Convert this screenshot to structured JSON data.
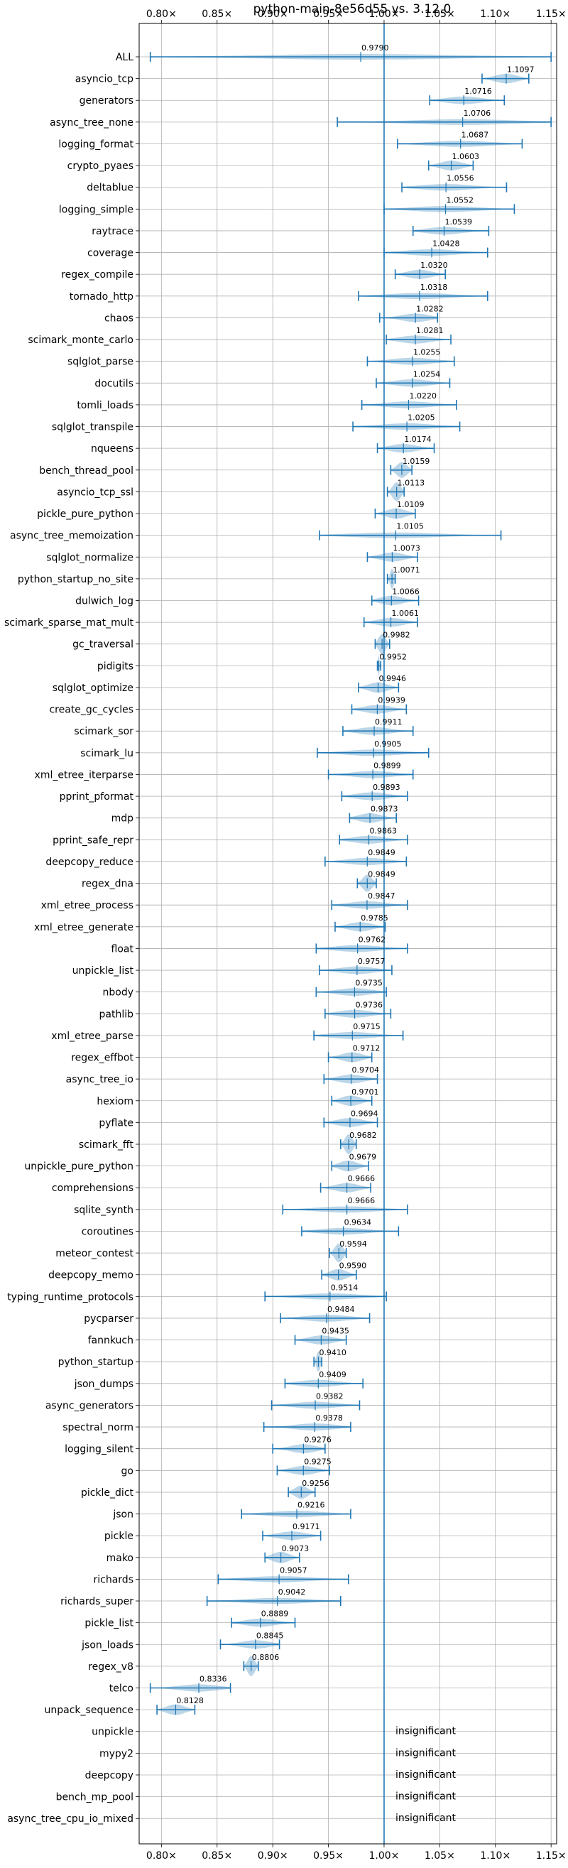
{
  "chart_data": {
    "type": "violin",
    "title": "python-main-8e56d55 vs. 3.12.0",
    "xlim": [
      0.78,
      1.155
    ],
    "x_ticks": [
      0.8,
      0.85,
      0.9,
      0.95,
      1.0,
      1.05,
      1.1,
      1.15
    ],
    "x_tick_labels": [
      "0.80×",
      "0.85×",
      "0.90×",
      "0.95×",
      "1.00×",
      "1.05×",
      "1.10×",
      "1.15×"
    ],
    "reference_line": 1.0,
    "ticks_top_and_bottom": true,
    "grid": true,
    "color": "#1f77b4",
    "insignificant_label": "insignificant",
    "benchmarks": [
      {
        "name": "ALL",
        "value": 0.979,
        "label": "0.9790",
        "min": 0.79,
        "max": 1.15
      },
      {
        "name": "asyncio_tcp",
        "value": 1.1097,
        "label": "1.1097",
        "min": 1.088,
        "max": 1.13
      },
      {
        "name": "generators",
        "value": 1.0716,
        "label": "1.0716",
        "min": 1.041,
        "max": 1.108
      },
      {
        "name": "async_tree_none",
        "value": 1.0706,
        "label": "1.0706",
        "min": 0.958,
        "max": 1.15
      },
      {
        "name": "logging_format",
        "value": 1.0687,
        "label": "1.0687",
        "min": 1.012,
        "max": 1.124
      },
      {
        "name": "crypto_pyaes",
        "value": 1.0603,
        "label": "1.0603",
        "min": 1.04,
        "max": 1.08
      },
      {
        "name": "deltablue",
        "value": 1.0556,
        "label": "1.0556",
        "min": 1.016,
        "max": 1.11
      },
      {
        "name": "logging_simple",
        "value": 1.0552,
        "label": "1.0552",
        "min": 1.0,
        "max": 1.117
      },
      {
        "name": "raytrace",
        "value": 1.0539,
        "label": "1.0539",
        "min": 1.026,
        "max": 1.094
      },
      {
        "name": "coverage",
        "value": 1.0428,
        "label": "1.0428",
        "min": 1.0,
        "max": 1.093
      },
      {
        "name": "regex_compile",
        "value": 1.032,
        "label": "1.0320",
        "min": 1.01,
        "max": 1.055
      },
      {
        "name": "tornado_http",
        "value": 1.0318,
        "label": "1.0318",
        "min": 0.977,
        "max": 1.093
      },
      {
        "name": "chaos",
        "value": 1.0282,
        "label": "1.0282",
        "min": 0.996,
        "max": 1.048
      },
      {
        "name": "scimark_monte_carlo",
        "value": 1.0281,
        "label": "1.0281",
        "min": 1.002,
        "max": 1.06
      },
      {
        "name": "sqlglot_parse",
        "value": 1.0255,
        "label": "1.0255",
        "min": 0.985,
        "max": 1.063
      },
      {
        "name": "docutils",
        "value": 1.0254,
        "label": "1.0254",
        "min": 0.993,
        "max": 1.059
      },
      {
        "name": "tomli_loads",
        "value": 1.022,
        "label": "1.0220",
        "min": 0.98,
        "max": 1.065
      },
      {
        "name": "sqlglot_transpile",
        "value": 1.0205,
        "label": "1.0205",
        "min": 0.972,
        "max": 1.068
      },
      {
        "name": "nqueens",
        "value": 1.0174,
        "label": "1.0174",
        "min": 0.994,
        "max": 1.045
      },
      {
        "name": "bench_thread_pool",
        "value": 1.0159,
        "label": "1.0159",
        "min": 1.006,
        "max": 1.025
      },
      {
        "name": "asyncio_tcp_ssl",
        "value": 1.0113,
        "label": "1.0113",
        "min": 1.003,
        "max": 1.018
      },
      {
        "name": "pickle_pure_python",
        "value": 1.0109,
        "label": "1.0109",
        "min": 0.992,
        "max": 1.028
      },
      {
        "name": "async_tree_memoization",
        "value": 1.0105,
        "label": "1.0105",
        "min": 0.942,
        "max": 1.105
      },
      {
        "name": "sqlglot_normalize",
        "value": 1.0073,
        "label": "1.0073",
        "min": 0.985,
        "max": 1.03
      },
      {
        "name": "python_startup_no_site",
        "value": 1.0071,
        "label": "1.0071",
        "min": 1.003,
        "max": 1.01
      },
      {
        "name": "dulwich_log",
        "value": 1.0066,
        "label": "1.0066",
        "min": 0.989,
        "max": 1.031
      },
      {
        "name": "scimark_sparse_mat_mult",
        "value": 1.0061,
        "label": "1.0061",
        "min": 0.982,
        "max": 1.03
      },
      {
        "name": "gc_traversal",
        "value": 0.9982,
        "label": "0.9982",
        "min": 0.992,
        "max": 1.005
      },
      {
        "name": "pidigits",
        "value": 0.9952,
        "label": "0.9952",
        "min": 0.994,
        "max": 0.997
      },
      {
        "name": "sqlglot_optimize",
        "value": 0.9946,
        "label": "0.9946",
        "min": 0.977,
        "max": 1.013
      },
      {
        "name": "create_gc_cycles",
        "value": 0.9939,
        "label": "0.9939",
        "min": 0.971,
        "max": 1.02
      },
      {
        "name": "scimark_sor",
        "value": 0.9911,
        "label": "0.9911",
        "min": 0.963,
        "max": 1.026
      },
      {
        "name": "scimark_lu",
        "value": 0.9905,
        "label": "0.9905",
        "min": 0.94,
        "max": 1.04
      },
      {
        "name": "xml_etree_iterparse",
        "value": 0.9899,
        "label": "0.9899",
        "min": 0.95,
        "max": 1.026
      },
      {
        "name": "pprint_pformat",
        "value": 0.9893,
        "label": "0.9893",
        "min": 0.962,
        "max": 1.021
      },
      {
        "name": "mdp",
        "value": 0.9873,
        "label": "0.9873",
        "min": 0.969,
        "max": 1.011
      },
      {
        "name": "pprint_safe_repr",
        "value": 0.9863,
        "label": "0.9863",
        "min": 0.96,
        "max": 1.021
      },
      {
        "name": "deepcopy_reduce",
        "value": 0.9849,
        "label": "0.9849",
        "min": 0.947,
        "max": 1.02
      },
      {
        "name": "regex_dna",
        "value": 0.9849,
        "label": "0.9849",
        "min": 0.976,
        "max": 0.993
      },
      {
        "name": "xml_etree_process",
        "value": 0.9847,
        "label": "0.9847",
        "min": 0.953,
        "max": 1.021
      },
      {
        "name": "xml_etree_generate",
        "value": 0.9785,
        "label": "0.9785",
        "min": 0.956,
        "max": 1.001
      },
      {
        "name": "float",
        "value": 0.9762,
        "label": "0.9762",
        "min": 0.939,
        "max": 1.021
      },
      {
        "name": "unpickle_list",
        "value": 0.9757,
        "label": "0.9757",
        "min": 0.942,
        "max": 1.007
      },
      {
        "name": "nbody",
        "value": 0.9735,
        "label": "0.9735",
        "min": 0.939,
        "max": 1.002
      },
      {
        "name": "pathlib",
        "value": 0.9736,
        "label": "0.9736",
        "min": 0.947,
        "max": 1.006
      },
      {
        "name": "xml_etree_parse",
        "value": 0.9715,
        "label": "0.9715",
        "min": 0.937,
        "max": 1.017
      },
      {
        "name": "regex_effbot",
        "value": 0.9712,
        "label": "0.9712",
        "min": 0.95,
        "max": 0.989
      },
      {
        "name": "async_tree_io",
        "value": 0.9704,
        "label": "0.9704",
        "min": 0.946,
        "max": 0.994
      },
      {
        "name": "hexiom",
        "value": 0.9701,
        "label": "0.9701",
        "min": 0.953,
        "max": 0.989
      },
      {
        "name": "pyflate",
        "value": 0.9694,
        "label": "0.9694",
        "min": 0.946,
        "max": 0.994
      },
      {
        "name": "scimark_fft",
        "value": 0.9682,
        "label": "0.9682",
        "min": 0.961,
        "max": 0.975
      },
      {
        "name": "unpickle_pure_python",
        "value": 0.9679,
        "label": "0.9679",
        "min": 0.953,
        "max": 0.986
      },
      {
        "name": "comprehensions",
        "value": 0.9666,
        "label": "0.9666",
        "min": 0.943,
        "max": 0.988
      },
      {
        "name": "sqlite_synth",
        "value": 0.9666,
        "label": "0.9666",
        "min": 0.909,
        "max": 1.021
      },
      {
        "name": "coroutines",
        "value": 0.9634,
        "label": "0.9634",
        "min": 0.926,
        "max": 1.013
      },
      {
        "name": "meteor_contest",
        "value": 0.9594,
        "label": "0.9594",
        "min": 0.951,
        "max": 0.966
      },
      {
        "name": "deepcopy_memo",
        "value": 0.959,
        "label": "0.9590",
        "min": 0.944,
        "max": 0.975
      },
      {
        "name": "typing_runtime_protocols",
        "value": 0.9514,
        "label": "0.9514",
        "min": 0.893,
        "max": 1.002
      },
      {
        "name": "pycparser",
        "value": 0.9484,
        "label": "0.9484",
        "min": 0.907,
        "max": 0.987
      },
      {
        "name": "fannkuch",
        "value": 0.9435,
        "label": "0.9435",
        "min": 0.92,
        "max": 0.966
      },
      {
        "name": "python_startup",
        "value": 0.941,
        "label": "0.9410",
        "min": 0.937,
        "max": 0.944
      },
      {
        "name": "json_dumps",
        "value": 0.9409,
        "label": "0.9409",
        "min": 0.911,
        "max": 0.981
      },
      {
        "name": "async_generators",
        "value": 0.9382,
        "label": "0.9382",
        "min": 0.899,
        "max": 0.978
      },
      {
        "name": "spectral_norm",
        "value": 0.9378,
        "label": "0.9378",
        "min": 0.892,
        "max": 0.97
      },
      {
        "name": "logging_silent",
        "value": 0.9276,
        "label": "0.9276",
        "min": 0.9,
        "max": 0.947
      },
      {
        "name": "go",
        "value": 0.9275,
        "label": "0.9275",
        "min": 0.904,
        "max": 0.951
      },
      {
        "name": "pickle_dict",
        "value": 0.9256,
        "label": "0.9256",
        "min": 0.914,
        "max": 0.938
      },
      {
        "name": "json",
        "value": 0.9216,
        "label": "0.9216",
        "min": 0.872,
        "max": 0.97
      },
      {
        "name": "pickle",
        "value": 0.9171,
        "label": "0.9171",
        "min": 0.891,
        "max": 0.943
      },
      {
        "name": "mako",
        "value": 0.9073,
        "label": "0.9073",
        "min": 0.893,
        "max": 0.924
      },
      {
        "name": "richards",
        "value": 0.9057,
        "label": "0.9057",
        "min": 0.851,
        "max": 0.968
      },
      {
        "name": "richards_super",
        "value": 0.9042,
        "label": "0.9042",
        "min": 0.841,
        "max": 0.961
      },
      {
        "name": "pickle_list",
        "value": 0.8889,
        "label": "0.8889",
        "min": 0.863,
        "max": 0.92
      },
      {
        "name": "json_loads",
        "value": 0.8845,
        "label": "0.8845",
        "min": 0.853,
        "max": 0.906
      },
      {
        "name": "regex_v8",
        "value": 0.8806,
        "label": "0.8806",
        "min": 0.874,
        "max": 0.887
      },
      {
        "name": "telco",
        "value": 0.8336,
        "label": "0.8336",
        "min": 0.79,
        "max": 0.862
      },
      {
        "name": "unpack_sequence",
        "value": 0.8128,
        "label": "0.8128",
        "min": 0.796,
        "max": 0.83
      },
      {
        "name": "unpickle",
        "insignificant": true
      },
      {
        "name": "mypy2",
        "insignificant": true
      },
      {
        "name": "deepcopy",
        "insignificant": true
      },
      {
        "name": "bench_mp_pool",
        "insignificant": true
      },
      {
        "name": "async_tree_cpu_io_mixed",
        "insignificant": true
      }
    ]
  }
}
